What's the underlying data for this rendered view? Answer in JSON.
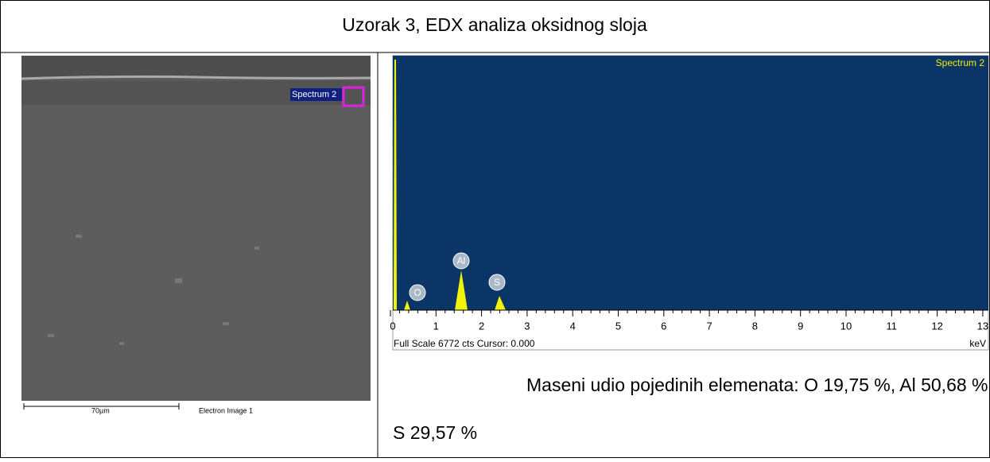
{
  "header": {
    "title": "Uzorak 3, EDX analiza oksidnog sloja"
  },
  "image": {
    "overlay_label": "Spectrum 2",
    "scale": "70µm",
    "caption": "Electron Image 1"
  },
  "spectrum": {
    "label": "Spectrum 2",
    "elements": [
      "O",
      "Al",
      "S"
    ],
    "ticks": [
      "0",
      "1",
      "2",
      "3",
      "4",
      "5",
      "6",
      "7",
      "8",
      "9",
      "10",
      "11",
      "12",
      "13"
    ],
    "footer": "Full Scale 6772 cts Cursor: 0.000",
    "unit": "keV"
  },
  "text": {
    "line1": "Maseni udio pojedinih elemenata: O 19,75 %, Al 50,68 %,",
    "line2": "S 29,57 %"
  }
}
